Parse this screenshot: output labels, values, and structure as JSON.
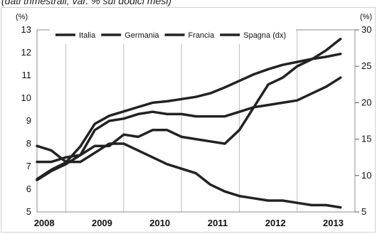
{
  "caption": "(dati trimestrali; var. % sul dodici mesi)",
  "chart_data": {
    "type": "line",
    "title": "",
    "y_left_unit": "(%)",
    "y_right_unit": "(%)",
    "y_left_range": [
      5,
      13
    ],
    "y_left_ticks": [
      "5",
      "6",
      "7",
      "8",
      "9",
      "10",
      "11",
      "12",
      "13"
    ],
    "y_right_range": [
      5,
      30
    ],
    "y_right_ticks": [
      "5",
      "10",
      "15",
      "20",
      "25",
      "30"
    ],
    "x_ticks": [
      "2008",
      "2009",
      "2010",
      "2011",
      "2012",
      "2013"
    ],
    "x_range": [
      2008.0,
      2013.5
    ],
    "grid": "vertical",
    "legend_position": "top",
    "line_color": "#222222",
    "series": [
      {
        "name": "Italia",
        "axis": "left",
        "x": [
          2008.0,
          2008.25,
          2008.5,
          2008.75,
          2009.0,
          2009.25,
          2009.5,
          2009.75,
          2010.0,
          2010.25,
          2010.5,
          2010.75,
          2011.0,
          2011.25,
          2011.5,
          2011.75,
          2012.0,
          2012.25,
          2012.5,
          2012.75,
          2013.0,
          2013.25
        ],
        "values": [
          6.4,
          6.8,
          7.1,
          7.5,
          7.9,
          7.9,
          8.4,
          8.3,
          8.6,
          8.6,
          8.3,
          8.2,
          8.1,
          8.0,
          8.6,
          9.6,
          10.6,
          10.9,
          11.4,
          11.7,
          12.1,
          12.6
        ]
      },
      {
        "name": "Germania",
        "axis": "left",
        "x": [
          2008.0,
          2008.25,
          2008.5,
          2008.75,
          2009.0,
          2009.25,
          2009.5,
          2009.75,
          2010.0,
          2010.25,
          2010.5,
          2010.75,
          2011.0,
          2011.25,
          2011.5,
          2011.75,
          2012.0,
          2012.25,
          2012.5,
          2012.75,
          2013.0,
          2013.25
        ],
        "values": [
          7.9,
          7.7,
          7.2,
          7.2,
          7.6,
          8.0,
          8.0,
          7.7,
          7.4,
          7.1,
          6.9,
          6.7,
          6.2,
          5.9,
          5.7,
          5.6,
          5.5,
          5.5,
          5.4,
          5.3,
          5.3,
          5.2
        ]
      },
      {
        "name": "Francia",
        "axis": "left",
        "x": [
          2008.0,
          2008.25,
          2008.5,
          2008.75,
          2009.0,
          2009.25,
          2009.5,
          2009.75,
          2010.0,
          2010.25,
          2010.5,
          2010.75,
          2011.0,
          2011.25,
          2011.5,
          2011.75,
          2012.0,
          2012.25,
          2012.5,
          2012.75,
          2013.0,
          2013.25
        ],
        "values": [
          7.2,
          7.2,
          7.4,
          7.5,
          8.6,
          9.0,
          9.1,
          9.3,
          9.4,
          9.3,
          9.3,
          9.2,
          9.2,
          9.2,
          9.4,
          9.6,
          9.7,
          9.8,
          9.9,
          10.2,
          10.5,
          10.9
        ]
      },
      {
        "name": "Spagna (dx)",
        "axis": "right",
        "x": [
          2008.0,
          2008.25,
          2008.5,
          2008.75,
          2009.0,
          2009.25,
          2009.5,
          2009.75,
          2010.0,
          2010.25,
          2010.5,
          2010.75,
          2011.0,
          2011.25,
          2011.5,
          2011.75,
          2012.0,
          2012.25,
          2012.5,
          2012.75,
          2013.0,
          2013.25
        ],
        "values": [
          9.5,
          10.8,
          11.8,
          14.0,
          17.1,
          18.2,
          18.8,
          19.4,
          20.0,
          20.2,
          20.5,
          20.8,
          21.3,
          22.1,
          23.0,
          23.9,
          24.6,
          25.2,
          25.6,
          26.0,
          26.3,
          26.7
        ]
      }
    ]
  }
}
